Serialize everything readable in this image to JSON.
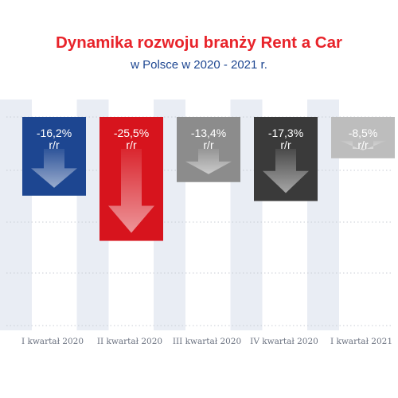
{
  "header": {
    "title": "Dynamika rozwoju branży Rent a Car",
    "subtitle": "w Polsce w 2020 - 2021 r."
  },
  "chart_data": {
    "type": "bar",
    "title": "Dynamika rozwoju branży Rent a Car",
    "subtitle": "w Polsce w 2020 - 2021 r.",
    "xlabel": "",
    "ylabel": "",
    "unit": "% r/r",
    "categories": [
      "I kwartał 2020",
      "II kwartał 2020",
      "III kwartał 2020",
      "IV kwartał 2020",
      "I kwartał 2021"
    ],
    "values": [
      -16.2,
      -25.5,
      -13.4,
      -17.3,
      -8.5
    ],
    "data_labels": [
      "-16,2%",
      "-25,5%",
      "-13,4%",
      "-17,3%",
      "-8,5%"
    ],
    "label_suffix": "r/r",
    "colors": [
      "#1d4691",
      "#d7141d",
      "#8c8c8c",
      "#3a3a3a",
      "#bdbdbd"
    ],
    "background_column_color": "#e9edf4",
    "grid": true,
    "legend": "none",
    "ylim": [
      -30,
      0
    ]
  }
}
